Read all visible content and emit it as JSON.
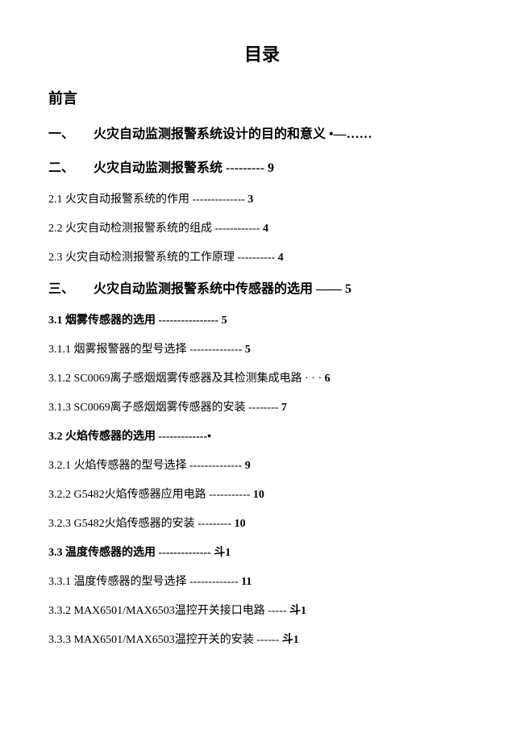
{
  "title": "目录",
  "preface": "前言",
  "sections": {
    "1": {
      "num": "一、",
      "text": "火灾自动监测报警系统设计的目的和意义",
      "leader": "•—……"
    },
    "2": {
      "num": "二、",
      "text": "火灾自动监测报警系统",
      "leader": "---------",
      "page": "9"
    },
    "2_1": {
      "num": "2.1",
      "text": "火灾自动报警系统的作用",
      "leader": " --------------",
      "page": "3"
    },
    "2_2": {
      "num": "2.2",
      "text": "火灾自动检测报警系统的组成",
      "leader": "------------",
      "page": "4"
    },
    "2_3": {
      "num": "2.3",
      "text": "火灾自动检测报警系统的工作原理",
      "leader": " ----------",
      "page": "4"
    },
    "3": {
      "num": "三、",
      "text": "火灾自动监测报警系统中传感器的选用",
      "leader": "——",
      "page": "5"
    },
    "3_1": {
      "num": "3.1",
      "text": "烟雾传感器的选用",
      "leader": " ----------------",
      "page": "5"
    },
    "3_1_1": {
      "num": "3.1.1",
      "text": "烟雾报警器的型号选择",
      "leader": "--------------",
      "page": "5"
    },
    "3_1_2": {
      "num": "3.1.2 ",
      "text": " SC0069离子感烟烟雾传感器及其检测集成电路",
      "leader": "· · · ",
      "page": "6"
    },
    "3_1_3": {
      "num": "3.1.3 ",
      "text": " SC0069离子感烟烟雾传感器的安装",
      "leader": "--------",
      "page": "7"
    },
    "3_2": {
      "num": "3.2",
      "text": "火焰传感器的选用",
      "leader": " -------------•",
      "page": ""
    },
    "3_2_1": {
      "num": "3.2.1",
      "text": "火焰传感器的型号选择",
      "leader": "--------------",
      "page": "9"
    },
    "3_2_2": {
      "num": "3.2.2 ",
      "text": " G5482火焰传感器应用电路",
      "leader": "-----------",
      "page": "10"
    },
    "3_2_3": {
      "num": "3.2.3 ",
      "text": " G5482火焰传感器的安装",
      "leader": "---------",
      "page": "10"
    },
    "3_3": {
      "num": "3.3",
      "text": "温度传感器的选用",
      "leader": " --------------",
      "page": "斗1"
    },
    "3_3_1": {
      "num": "3.3.1",
      "text": "温度传感器的型号选择",
      "leader": "-------------",
      "page": "11"
    },
    "3_3_2": {
      "num": "3.3.2 ",
      "text": " MAX6501/MAX6503温控开关接口电路",
      "leader": " -----",
      "page": "斗1"
    },
    "3_3_3": {
      "num": "3.3.3 ",
      "text": " MAX6501/MAX6503温控开关的安装",
      "leader": " ------",
      "page": "斗1"
    }
  }
}
